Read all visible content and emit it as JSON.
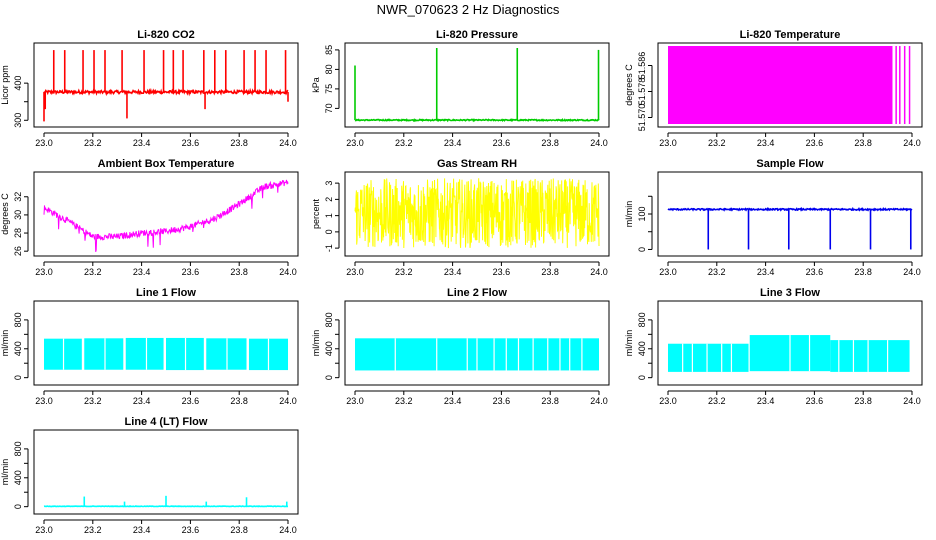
{
  "figure": {
    "title": "NWR_070623  2 Hz Diagnostics"
  },
  "chart_data": [
    {
      "type": "line",
      "title": "Li-820 CO2",
      "xlabel": "",
      "ylabel": "Licor ppm",
      "xlim": [
        23.0,
        24.0
      ],
      "ylim": [
        290,
        500
      ],
      "xticks": [
        23.0,
        23.2,
        23.4,
        23.6,
        23.8,
        24.0
      ],
      "yticks": [
        300,
        350,
        400
      ],
      "yticklabels": [
        "300",
        "",
        "400"
      ],
      "color": "#ff0000",
      "baseline": 376,
      "noise": 4,
      "spikes": [
        {
          "x": 23.0,
          "y": 297
        },
        {
          "x": 23.005,
          "y": 330
        },
        {
          "x": 23.04,
          "y": 489
        },
        {
          "x": 23.085,
          "y": 489
        },
        {
          "x": 23.16,
          "y": 489
        },
        {
          "x": 23.205,
          "y": 489
        },
        {
          "x": 23.25,
          "y": 489
        },
        {
          "x": 23.32,
          "y": 489
        },
        {
          "x": 23.34,
          "y": 305
        },
        {
          "x": 23.41,
          "y": 489
        },
        {
          "x": 23.49,
          "y": 489
        },
        {
          "x": 23.53,
          "y": 489
        },
        {
          "x": 23.57,
          "y": 489
        },
        {
          "x": 23.655,
          "y": 489
        },
        {
          "x": 23.66,
          "y": 330
        },
        {
          "x": 23.7,
          "y": 489
        },
        {
          "x": 23.745,
          "y": 489
        },
        {
          "x": 23.82,
          "y": 489
        },
        {
          "x": 23.865,
          "y": 489
        },
        {
          "x": 23.91,
          "y": 489
        },
        {
          "x": 23.99,
          "y": 489
        },
        {
          "x": 24.0,
          "y": 350
        }
      ]
    },
    {
      "type": "line",
      "title": "Li-820 Pressure",
      "xlabel": "",
      "ylabel": "kPa",
      "xlim": [
        23.0,
        24.0
      ],
      "ylim": [
        66,
        86
      ],
      "xticks": [
        23.0,
        23.2,
        23.4,
        23.6,
        23.8,
        24.0
      ],
      "yticks": [
        70,
        75,
        80,
        85
      ],
      "yticklabels": [
        "70",
        "75",
        "80",
        "85"
      ],
      "color": "#00cc00",
      "baseline": 67,
      "noise": 0.15,
      "spikes": [
        {
          "x": 23.0,
          "y": 81
        },
        {
          "x": 23.335,
          "y": 85.5
        },
        {
          "x": 23.665,
          "y": 85.5
        },
        {
          "x": 23.998,
          "y": 85
        }
      ]
    },
    {
      "type": "area",
      "title": "Li-820 Temperature",
      "xlabel": "",
      "ylabel": "degrees C",
      "xlim": [
        23.0,
        24.0
      ],
      "ylim": [
        51.568,
        51.592
      ],
      "xticks": [
        23.0,
        23.2,
        23.4,
        23.6,
        23.8,
        24.0
      ],
      "yticks": [
        51.57,
        51.578,
        51.586
      ],
      "yticklabels": [
        "51.570",
        "51.578",
        "51.586"
      ],
      "color": "#ff00ff",
      "fill": [
        51.568,
        51.592
      ],
      "fill_until": 23.92,
      "stripes": [
        23.935,
        23.95,
        23.97,
        23.99
      ]
    },
    {
      "type": "line",
      "title": "Ambient Box Temperature",
      "xlabel": "",
      "ylabel": "degrees C",
      "xlim": [
        23.0,
        24.0
      ],
      "ylim": [
        25.8,
        34.4
      ],
      "xticks": [
        23.0,
        23.2,
        23.4,
        23.6,
        23.8,
        24.0
      ],
      "yticks": [
        26,
        28,
        30,
        32
      ],
      "yticklabels": [
        "26",
        "28",
        "30",
        "32"
      ],
      "color": "#ff00ff",
      "noise": 0.35,
      "x": [
        23.0,
        23.1,
        23.2,
        23.3,
        23.4,
        23.5,
        23.6,
        23.7,
        23.8,
        23.9,
        24.0
      ],
      "values": [
        30.8,
        29.3,
        27.6,
        27.6,
        28.0,
        28.2,
        28.7,
        29.6,
        31.2,
        33.1,
        33.6
      ]
    },
    {
      "type": "line",
      "title": "Gas Stream RH",
      "xlabel": "",
      "ylabel": "percent",
      "xlim": [
        23.0,
        24.0
      ],
      "ylim": [
        -1.3,
        3.5
      ],
      "xticks": [
        23.0,
        23.2,
        23.4,
        23.6,
        23.8,
        24.0
      ],
      "yticks": [
        -1,
        0,
        1,
        2,
        3
      ],
      "yticklabels": [
        "-1",
        "0",
        "1",
        "2",
        "3"
      ],
      "color": "#ffff00",
      "band": [
        -1.0,
        3.3
      ],
      "center": 1.0
    },
    {
      "type": "line",
      "title": "Sample Flow",
      "xlabel": "",
      "ylabel": "ml/min",
      "xlim": [
        23.0,
        24.0
      ],
      "ylim": [
        -10,
        210
      ],
      "xticks": [
        23.0,
        23.2,
        23.4,
        23.6,
        23.8,
        24.0
      ],
      "yticks": [
        0,
        50,
        100,
        150
      ],
      "yticklabels": [
        "0",
        "",
        "100",
        ""
      ],
      "color": "#0000ee",
      "baseline": 113,
      "noise": 2,
      "spikes": [
        {
          "x": 23.165,
          "y": 0
        },
        {
          "x": 23.33,
          "y": 0
        },
        {
          "x": 23.495,
          "y": 0
        },
        {
          "x": 23.665,
          "y": 0
        },
        {
          "x": 23.83,
          "y": 0
        },
        {
          "x": 23.995,
          "y": 0
        }
      ]
    },
    {
      "type": "area",
      "title": "Line 1 Flow",
      "xlabel": "",
      "ylabel": "ml/min",
      "xlim": [
        23.0,
        24.0
      ],
      "ylim": [
        -60,
        1020
      ],
      "xticks": [
        23.0,
        23.2,
        23.4,
        23.6,
        23.8,
        24.0
      ],
      "yticks": [
        0,
        200,
        400,
        600,
        800
      ],
      "yticklabels": [
        "0",
        "",
        "400",
        "",
        "800"
      ],
      "color": "#00ffff",
      "segments": [
        [
          23.0,
          23.155,
          110,
          540
        ],
        [
          23.165,
          23.325,
          110,
          545
        ],
        [
          23.335,
          23.49,
          110,
          550
        ],
        [
          23.5,
          23.655,
          105,
          550
        ],
        [
          23.665,
          23.83,
          110,
          545
        ],
        [
          23.84,
          24.0,
          105,
          540
        ]
      ],
      "gaps": [
        23.08,
        23.25,
        23.42,
        23.58,
        23.75,
        23.92
      ]
    },
    {
      "type": "area",
      "title": "Line 2 Flow",
      "xlabel": "",
      "ylabel": "ml/min",
      "xlim": [
        23.0,
        24.0
      ],
      "ylim": [
        -60,
        1020
      ],
      "xticks": [
        23.0,
        23.2,
        23.4,
        23.6,
        23.8,
        24.0
      ],
      "yticks": [
        0,
        200,
        400,
        600,
        800
      ],
      "yticklabels": [
        "0",
        "",
        "400",
        "",
        "800"
      ],
      "color": "#00ffff",
      "segments": [
        [
          23.0,
          24.0,
          100,
          545
        ]
      ],
      "gaps": [
        23.165,
        23.335,
        23.46,
        23.5,
        23.57,
        23.62,
        23.67,
        23.73,
        23.79,
        23.84,
        23.88,
        23.93
      ]
    },
    {
      "type": "area",
      "title": "Line 3 Flow",
      "xlabel": "",
      "ylabel": "ml/min",
      "xlim": [
        23.0,
        24.0
      ],
      "ylim": [
        -60,
        1020
      ],
      "xticks": [
        23.0,
        23.2,
        23.4,
        23.6,
        23.8,
        24.0
      ],
      "yticks": [
        0,
        200,
        400,
        600,
        800
      ],
      "yticklabels": [
        "0",
        "",
        "400",
        "",
        "800"
      ],
      "color": "#00ffff",
      "segments": [
        [
          23.0,
          23.33,
          80,
          470
        ],
        [
          23.335,
          23.665,
          90,
          590
        ],
        [
          23.665,
          23.99,
          80,
          520
        ]
      ],
      "gaps": [
        23.06,
        23.1,
        23.16,
        23.22,
        23.26,
        23.5,
        23.58,
        23.7,
        23.76,
        23.82,
        23.9
      ]
    },
    {
      "type": "line",
      "title": "Line 4 (LT) Flow",
      "xlabel": "",
      "ylabel": "ml/min",
      "xlim": [
        23.0,
        24.0
      ],
      "ylim": [
        -60,
        1020
      ],
      "xticks": [
        23.0,
        23.2,
        23.4,
        23.6,
        23.8,
        24.0
      ],
      "yticks": [
        0,
        200,
        400,
        600,
        800
      ],
      "yticklabels": [
        "0",
        "",
        "400",
        "",
        "800"
      ],
      "color": "#00ffff",
      "baseline": 5,
      "noise": 3,
      "spikes": [
        {
          "x": 23.165,
          "y": 140
        },
        {
          "x": 23.33,
          "y": 70
        },
        {
          "x": 23.5,
          "y": 150
        },
        {
          "x": 23.665,
          "y": 70
        },
        {
          "x": 23.83,
          "y": 130
        },
        {
          "x": 23.995,
          "y": 70
        }
      ]
    }
  ]
}
